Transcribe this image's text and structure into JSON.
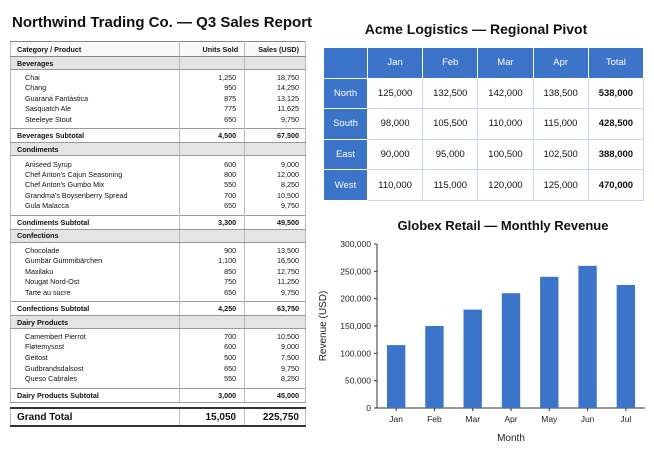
{
  "northwind": {
    "title": "Northwind Trading Co. — Q3 Sales Report",
    "headers": [
      "Category / Product",
      "Units Sold",
      "Sales (USD)"
    ],
    "groups": [
      {
        "name": "Beverages",
        "items": [
          {
            "product": "Chai",
            "units": "1,250",
            "sales": "18,750"
          },
          {
            "product": "Chang",
            "units": "950",
            "sales": "14,250"
          },
          {
            "product": "Guaraná Fantástica",
            "units": "875",
            "sales": "13,125"
          },
          {
            "product": "Sasquatch Ale",
            "units": "775",
            "sales": "11,625"
          },
          {
            "product": "Steeleye Stout",
            "units": "650",
            "sales": "9,750"
          }
        ],
        "subtotal": {
          "label": "Beverages Subtotal",
          "units": "4,500",
          "sales": "67,500"
        }
      },
      {
        "name": "Condiments",
        "items": [
          {
            "product": "Aniseed Syrup",
            "units": "600",
            "sales": "9,000"
          },
          {
            "product": "Chef Anton's Cajun Seasoning",
            "units": "800",
            "sales": "12,000"
          },
          {
            "product": "Chef Anton's Gumbo Mix",
            "units": "550",
            "sales": "8,250"
          },
          {
            "product": "Grandma's Boysenberry Spread",
            "units": "700",
            "sales": "10,500"
          },
          {
            "product": "Gula Malacca",
            "units": "650",
            "sales": "9,750"
          }
        ],
        "subtotal": {
          "label": "Condiments Subtotal",
          "units": "3,300",
          "sales": "49,500"
        }
      },
      {
        "name": "Confections",
        "items": [
          {
            "product": "Chocolade",
            "units": "900",
            "sales": "13,500"
          },
          {
            "product": "Gumbär Gummibärchen",
            "units": "1,100",
            "sales": "16,500"
          },
          {
            "product": "Maxilaku",
            "units": "850",
            "sales": "12,750"
          },
          {
            "product": "Nougat Nord-Ost",
            "units": "750",
            "sales": "11,250"
          },
          {
            "product": "Tarte au sucre",
            "units": "650",
            "sales": "9,750"
          }
        ],
        "subtotal": {
          "label": "Confections Subtotal",
          "units": "4,250",
          "sales": "63,750"
        }
      },
      {
        "name": "Dairy Products",
        "items": [
          {
            "product": "Camembert Pierrot",
            "units": "700",
            "sales": "10,500"
          },
          {
            "product": "Fløtemysost",
            "units": "600",
            "sales": "9,000"
          },
          {
            "product": "Geitost",
            "units": "500",
            "sales": "7,500"
          },
          {
            "product": "Gudbrandsdalsost",
            "units": "650",
            "sales": "9,750"
          },
          {
            "product": "Queso Cabrales",
            "units": "550",
            "sales": "8,250"
          }
        ],
        "subtotal": {
          "label": "Dairy Products Subtotal",
          "units": "3,000",
          "sales": "45,000"
        }
      }
    ],
    "grand_total": {
      "label": "Grand Total",
      "units": "15,050",
      "sales": "225,750"
    }
  },
  "acme": {
    "title": "Acme Logistics — Regional Pivot",
    "corner": "",
    "columns": [
      "Jan",
      "Feb",
      "Mar",
      "Apr",
      "Total"
    ],
    "rows": [
      {
        "region": "North",
        "values": [
          "125,000",
          "132,500",
          "142,000",
          "138,500",
          "538,000"
        ]
      },
      {
        "region": "South",
        "values": [
          "98,000",
          "105,500",
          "110,000",
          "115,000",
          "428,500"
        ]
      },
      {
        "region": "East",
        "values": [
          "90,000",
          "95,000",
          "100,500",
          "102,500",
          "388,000"
        ]
      },
      {
        "region": "West",
        "values": [
          "110,000",
          "115,000",
          "120,000",
          "125,000",
          "470,000"
        ]
      }
    ],
    "header_color": "#3b74c9"
  },
  "globex": {
    "title": "Globex Retail — Monthly Revenue"
  },
  "chart_data": {
    "type": "bar",
    "title": "Globex Retail — Monthly Revenue",
    "xlabel": "Month",
    "ylabel": "Revenue (USD)",
    "categories": [
      "Jan",
      "Feb",
      "Mar",
      "Apr",
      "May",
      "Jun",
      "Jul"
    ],
    "values": [
      115000,
      150000,
      180000,
      210000,
      240000,
      260000,
      225000
    ],
    "ylim": [
      0,
      300000
    ],
    "yticks": [
      0,
      50000,
      100000,
      150000,
      200000,
      250000,
      300000
    ],
    "ytick_labels": [
      "0",
      "50,000",
      "100,000",
      "150,000",
      "200,000",
      "250,000",
      "300,000"
    ],
    "bar_color": "#3b74c9",
    "grid": false,
    "legend": "none"
  }
}
